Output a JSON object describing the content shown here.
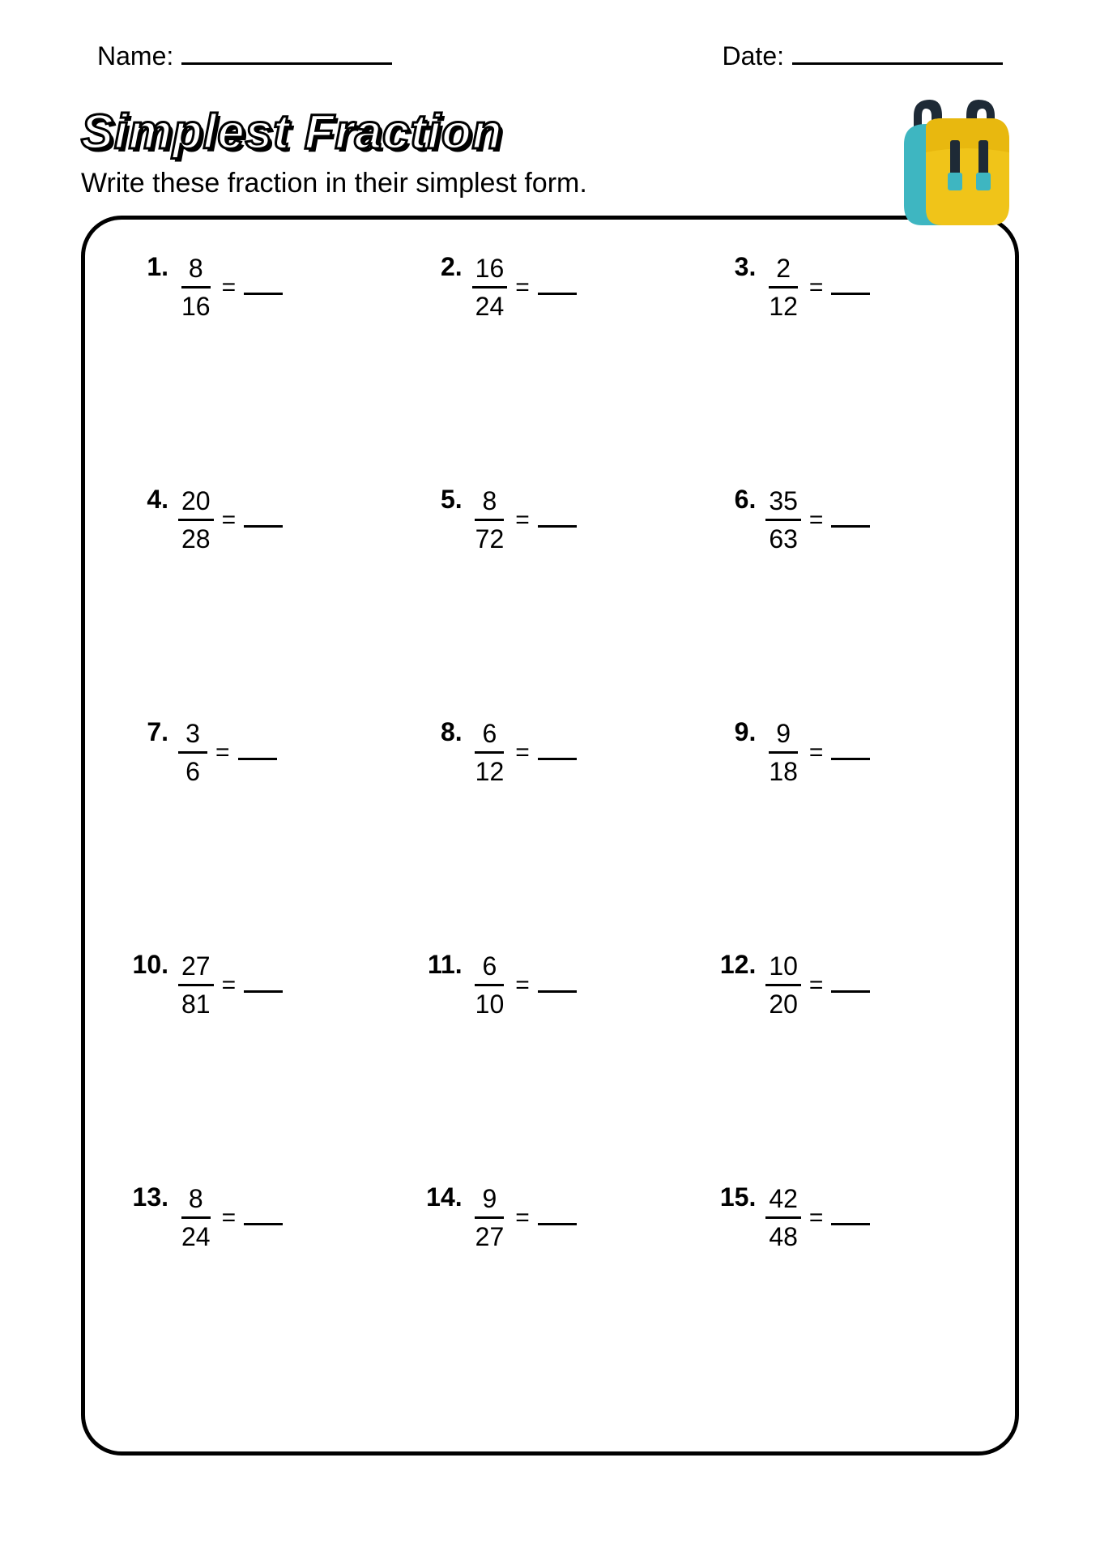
{
  "header": {
    "name_label": "Name:",
    "date_label": "Date:"
  },
  "title": "Simplest Fraction",
  "subtitle": "Write these fraction in their simplest form.",
  "backpack": {
    "body_color": "#f0c419",
    "pocket_color": "#f0c419",
    "back_color": "#3eb6c1",
    "strap_color": "#1e2a36",
    "buckle_color": "#1e2a36"
  },
  "problems": [
    {
      "n": "1.",
      "num": "8",
      "den": "16"
    },
    {
      "n": "2.",
      "num": "16",
      "den": "24"
    },
    {
      "n": "3.",
      "num": "2",
      "den": "12"
    },
    {
      "n": "4.",
      "num": "20",
      "den": "28"
    },
    {
      "n": "5.",
      "num": "8",
      "den": "72"
    },
    {
      "n": "6.",
      "num": "35",
      "den": "63"
    },
    {
      "n": "7.",
      "num": "3",
      "den": "6"
    },
    {
      "n": "8.",
      "num": "6",
      "den": "12"
    },
    {
      "n": "9.",
      "num": "9",
      "den": "18"
    },
    {
      "n": "10.",
      "num": "27",
      "den": "81"
    },
    {
      "n": "11.",
      "num": "6",
      "den": "10"
    },
    {
      "n": "12.",
      "num": "10",
      "den": "20"
    },
    {
      "n": "13.",
      "num": "8",
      "den": "24"
    },
    {
      "n": "14.",
      "num": "9",
      "den": "27"
    },
    {
      "n": "15.",
      "num": "42",
      "den": "48"
    }
  ],
  "style": {
    "page_bg": "#ffffff",
    "text_color": "#000000",
    "border_radius": 50,
    "border_width": 5,
    "title_fontsize": 60,
    "subtitle_fontsize": 34,
    "body_fontsize": 32,
    "grid_cols": 3,
    "row_gap": 200
  }
}
